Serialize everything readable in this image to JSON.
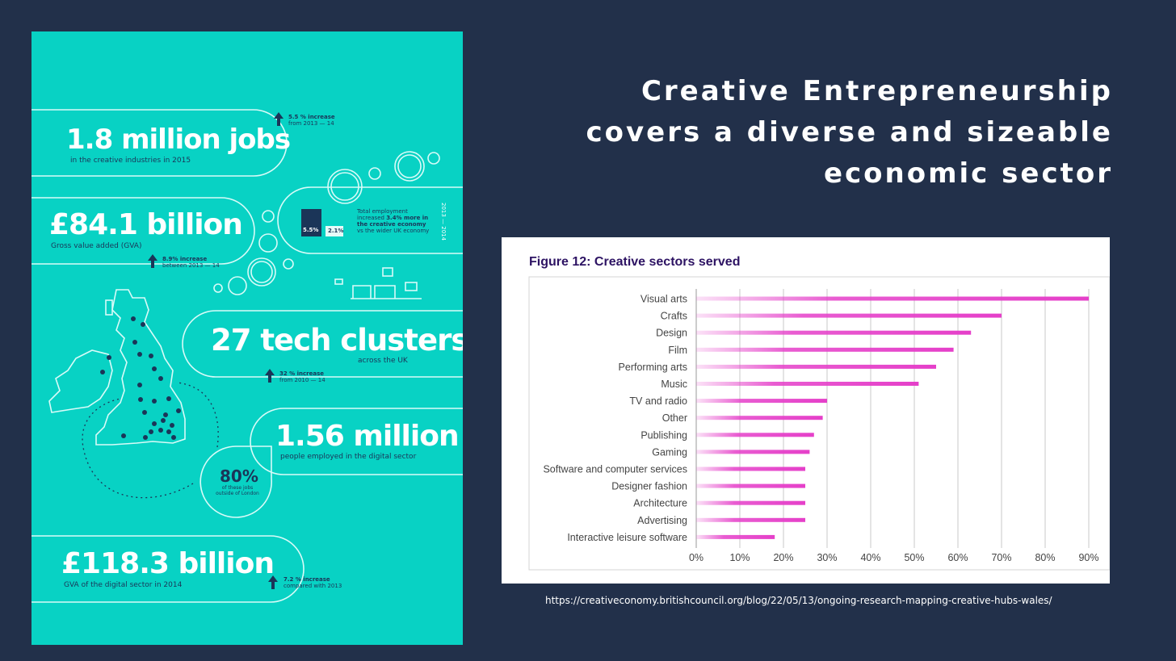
{
  "headline": {
    "lines": [
      "Creative Entrepreneurship",
      "covers a diverse and  sizeable",
      "economic sector"
    ]
  },
  "infographic": {
    "jobs": {
      "value": "1.8 million jobs",
      "caption": "in the creative industries in 2015",
      "increase": "5.5 % increase",
      "period": "from 2013 — 14"
    },
    "gva": {
      "value": "£84.1 billion",
      "caption": "Gross value added (GVA)",
      "increase": "8.9% increase",
      "period": "between 2013 — 14"
    },
    "employment_box": {
      "bar_a": "5.5%",
      "bar_b": "2.1%",
      "note_1": "Total employment",
      "note_2": "increased",
      "note_bold": "3.4% more in the creative economy",
      "note_3": "vs the wider UK economy",
      "years": "2013 — 2014"
    },
    "tech": {
      "value": "27 tech clusters",
      "caption": "across the UK",
      "increase": "32 % increase",
      "period": "from 2010 — 14"
    },
    "digital": {
      "value": "1.56 million",
      "caption": "people employed in the digital sector"
    },
    "london": {
      "value": "80%",
      "caption_1": "of these jobs",
      "caption_2": "outside of London"
    },
    "digital_gva": {
      "value": "£118.3 billion",
      "caption": "GVA of the digital sector in 2014",
      "increase": "7.2 % increase",
      "period": "compared with 2013"
    },
    "colors": {
      "background": "#08d2c4",
      "ink": "#1b3558",
      "line": "#ffffff"
    }
  },
  "chart_data": {
    "type": "bar",
    "orientation": "horizontal",
    "title": "Figure 12: Creative sectors served",
    "categories": [
      "Visual arts",
      "Crafts",
      "Design",
      "Film",
      "Performing arts",
      "Music",
      "TV and radio",
      "Other",
      "Publishing",
      "Gaming",
      "Software and computer services",
      "Designer fashion",
      "Architecture",
      "Advertising",
      "Interactive leisure software"
    ],
    "values": [
      90,
      70,
      63,
      59,
      55,
      51,
      30,
      29,
      27,
      26,
      25,
      25,
      25,
      25,
      18
    ],
    "xlim": [
      0,
      90
    ],
    "ticks": [
      0,
      10,
      20,
      30,
      40,
      50,
      60,
      70,
      80,
      90
    ],
    "tick_labels": [
      "0%",
      "10%",
      "20%",
      "30%",
      "40%",
      "50%",
      "60%",
      "70%",
      "80%",
      "90%"
    ],
    "grid": "vertical",
    "bar_color": "#e53fc9",
    "xlabel": "",
    "ylabel": ""
  },
  "source_url": "https://creativeconomy.britishcouncil.org/blog/22/05/13/ongoing-research-mapping-creative-hubs-wales/"
}
